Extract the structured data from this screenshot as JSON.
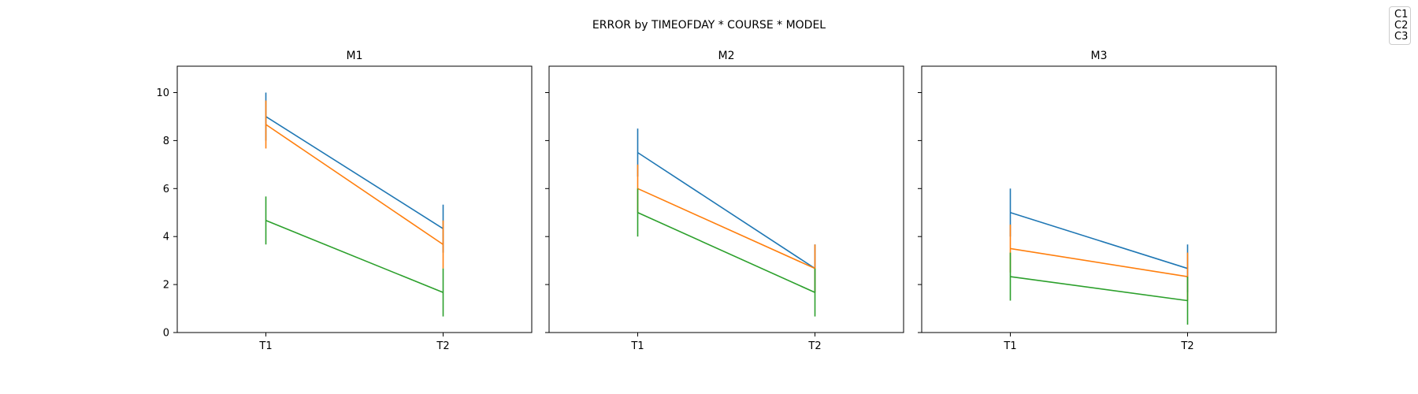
{
  "chart_data": {
    "type": "line",
    "title": "ERROR by TIMEOFDAY * COURSE * MODEL",
    "x": [
      "T1",
      "T2"
    ],
    "ylim": [
      0,
      11.1
    ],
    "yticks": [
      0,
      2,
      4,
      6,
      8,
      10
    ],
    "legend": {
      "placement": "top-right",
      "entries": [
        "C1",
        "C2",
        "C3"
      ]
    },
    "colors": {
      "C1": "#1f77b4",
      "C2": "#ff7f0e",
      "C3": "#2ca02c"
    },
    "grid": false,
    "panels": [
      {
        "title": "M1",
        "series": [
          {
            "name": "C1",
            "values": [
              9.0,
              4.33
            ],
            "errors": [
              1.0,
              1.0
            ]
          },
          {
            "name": "C2",
            "values": [
              8.67,
              3.67
            ],
            "errors": [
              1.0,
              1.0
            ]
          },
          {
            "name": "C3",
            "values": [
              4.67,
              1.67
            ],
            "errors": [
              1.0,
              1.0
            ]
          }
        ]
      },
      {
        "title": "M2",
        "series": [
          {
            "name": "C1",
            "values": [
              7.5,
              2.67
            ],
            "errors": [
              1.0,
              1.0
            ]
          },
          {
            "name": "C2",
            "values": [
              6.0,
              2.67
            ],
            "errors": [
              1.0,
              1.0
            ]
          },
          {
            "name": "C3",
            "values": [
              5.0,
              1.67
            ],
            "errors": [
              1.0,
              1.0
            ]
          }
        ]
      },
      {
        "title": "M3",
        "series": [
          {
            "name": "C1",
            "values": [
              5.0,
              2.67
            ],
            "errors": [
              1.0,
              1.0
            ]
          },
          {
            "name": "C2",
            "values": [
              3.5,
              2.33
            ],
            "errors": [
              1.0,
              1.0
            ]
          },
          {
            "name": "C3",
            "values": [
              2.33,
              1.33
            ],
            "errors": [
              1.0,
              1.0
            ]
          }
        ]
      }
    ]
  }
}
